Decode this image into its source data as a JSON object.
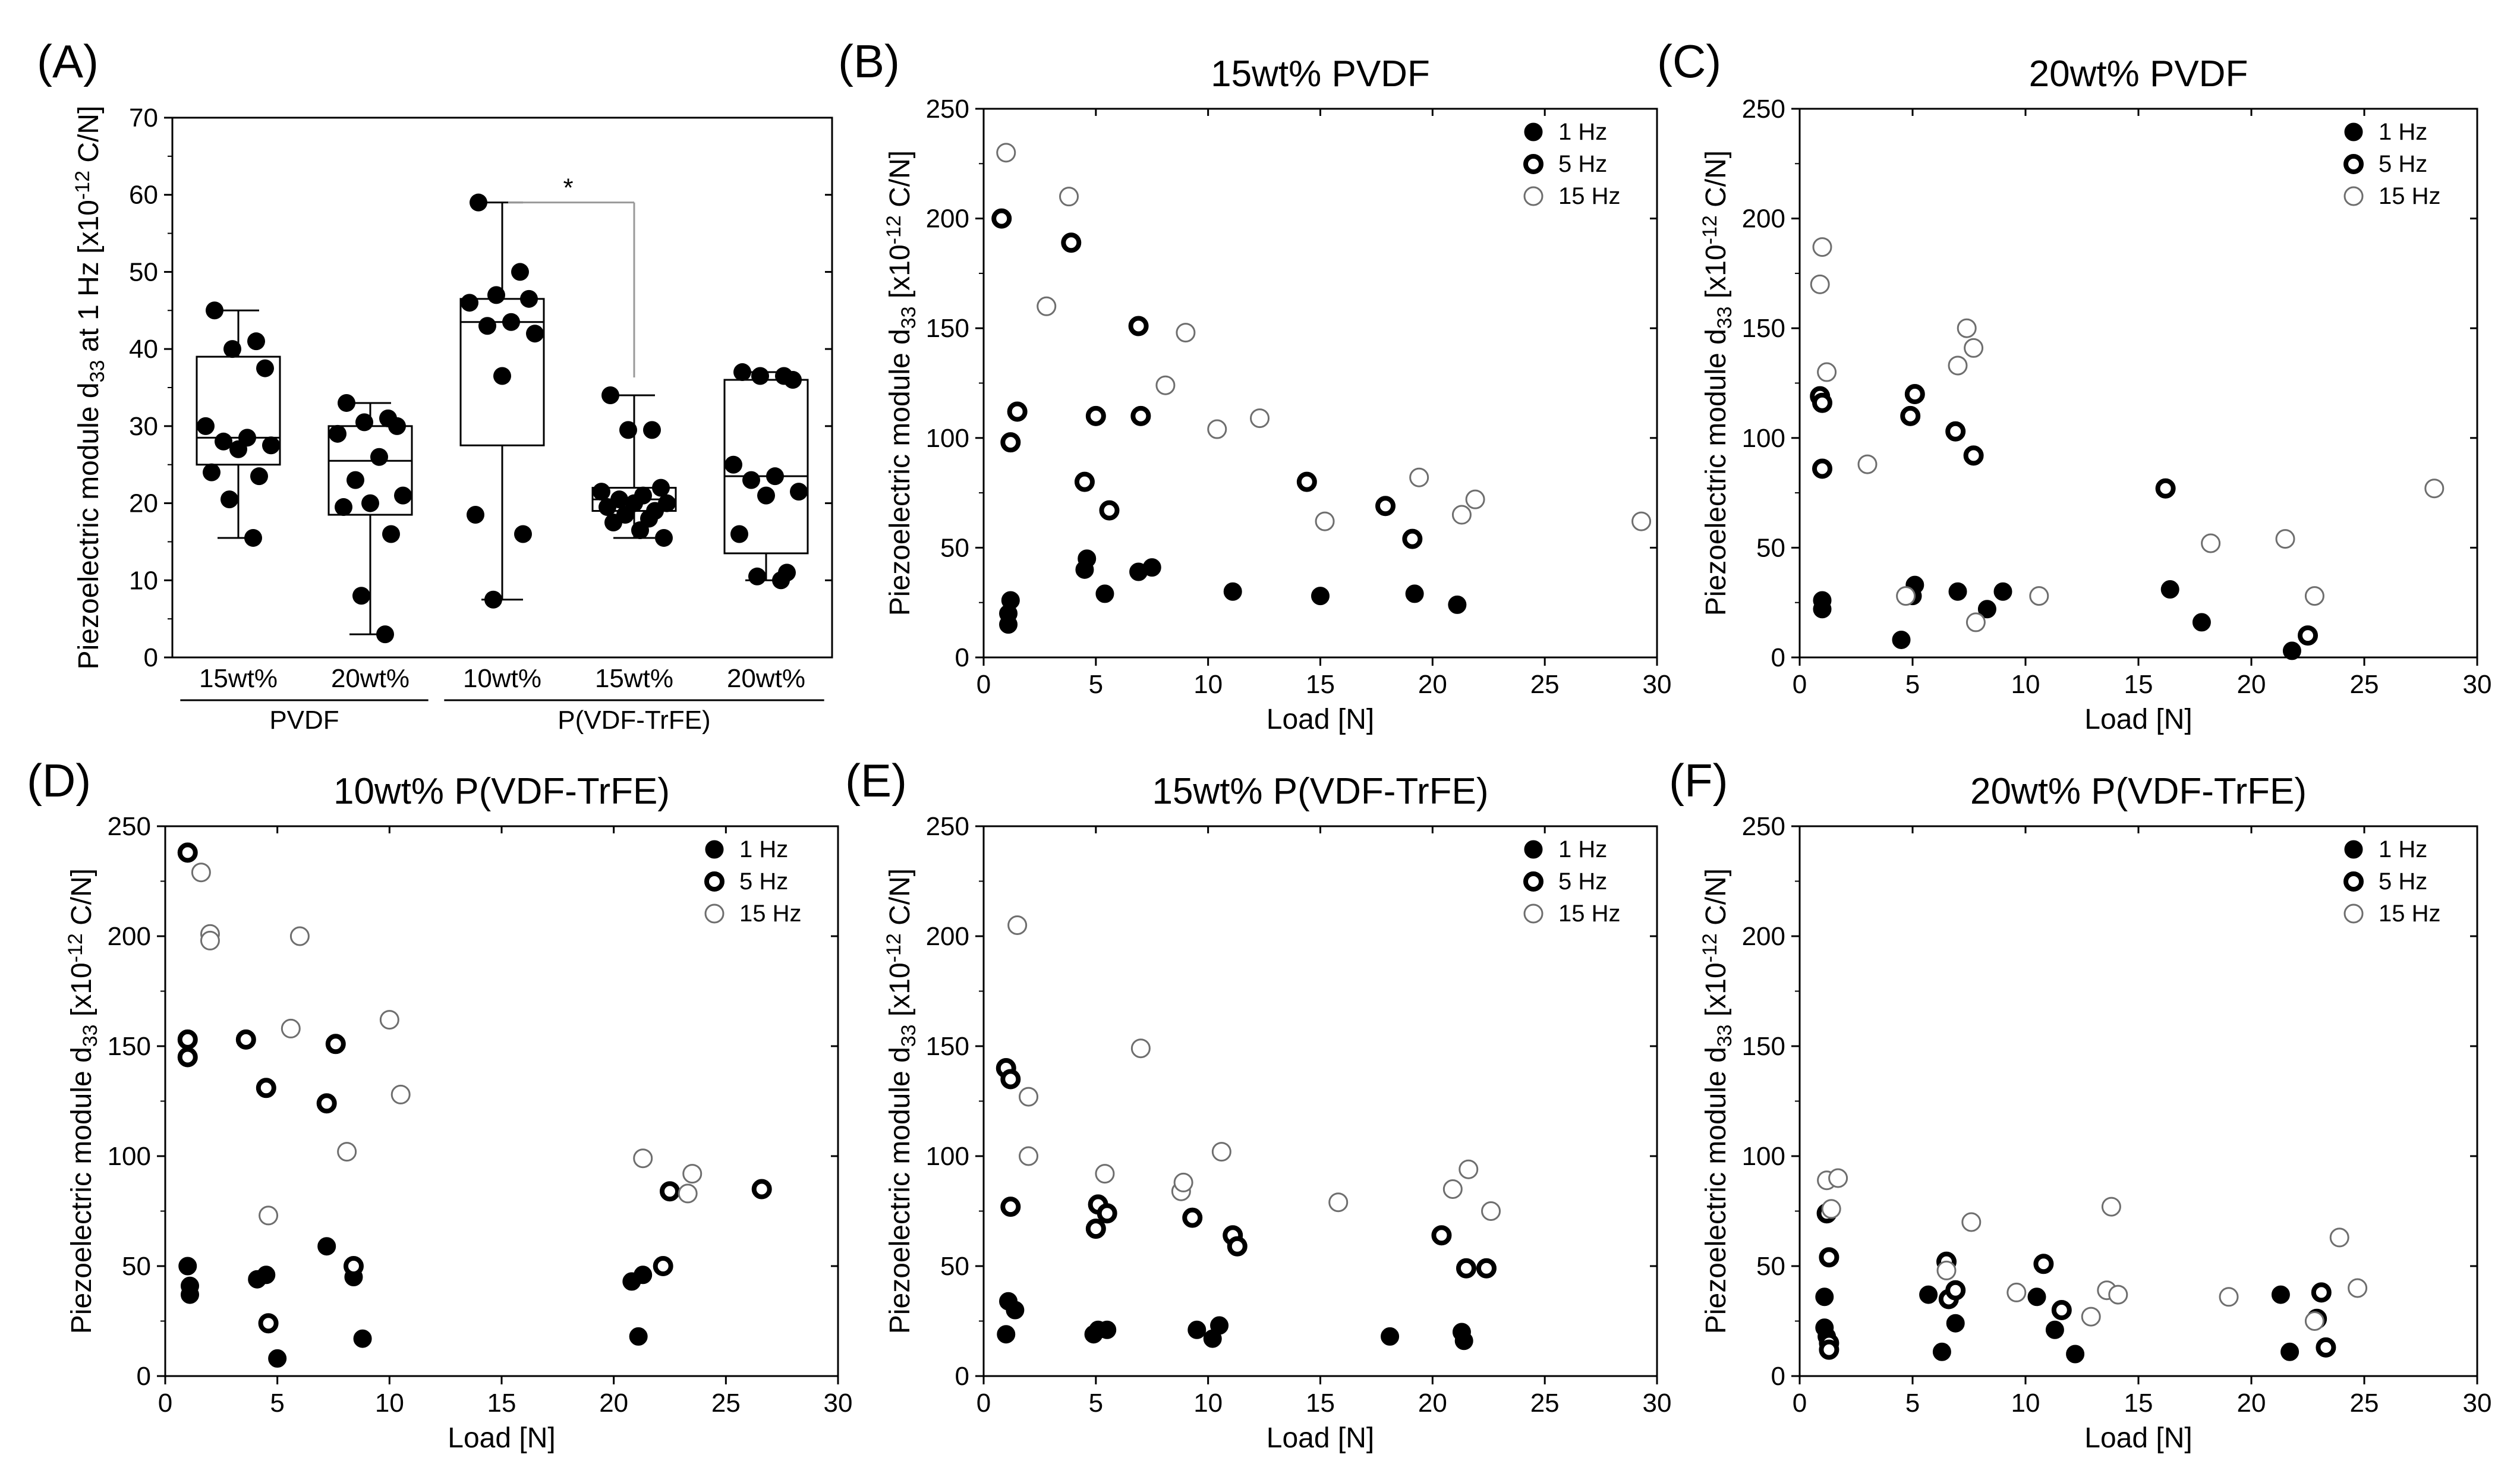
{
  "figure": {
    "panels": [
      "(A)",
      "(B)",
      "(C)",
      "(D)",
      "(E)",
      "(F)"
    ]
  },
  "chart_data": [
    {
      "panel": "(A)",
      "type": "box",
      "title": "",
      "ylabel_main": "Piezoelectric module d",
      "ylabel_sub": "33",
      "ylabel_rest": " at 1 Hz [x10",
      "ylabel_sup": "-12",
      "ylabel_end": " C/N]",
      "ylim": [
        0,
        70
      ],
      "yticks": [
        "0",
        "10",
        "20",
        "30",
        "40",
        "50",
        "60",
        "70"
      ],
      "categories": [
        "15wt%",
        "20wt%",
        "10wt%",
        "15wt%",
        "20wt%"
      ],
      "groups": [
        {
          "label": "PVDF",
          "from": 0,
          "to": 1
        },
        {
          "label": "P(VDF-TrFE)",
          "from": 2,
          "to": 4
        }
      ],
      "significance": "*",
      "boxes": [
        {
          "q1": 25,
          "median": 28.5,
          "q3": 39,
          "wmin": 15.5,
          "wmax": 45,
          "points": [
            45,
            41,
            40,
            37.5,
            30,
            28.5,
            28,
            27.5,
            27,
            24,
            23.5,
            20.5,
            15.5
          ]
        },
        {
          "q1": 18.5,
          "median": 25.5,
          "q3": 30,
          "wmin": 3,
          "wmax": 33,
          "points": [
            33,
            31,
            30.5,
            30,
            29,
            26,
            23,
            21,
            20,
            19.5,
            16,
            8,
            3
          ]
        },
        {
          "q1": 27.5,
          "median": 43.5,
          "q3": 46.5,
          "wmin": 7.5,
          "wmax": 59,
          "points": [
            59,
            50,
            47,
            46.5,
            46,
            43.5,
            43,
            42,
            36.5,
            18.5,
            16,
            7.5
          ]
        },
        {
          "q1": 19,
          "median": 20.5,
          "q3": 22,
          "wmin": 15.5,
          "wmax": 34,
          "points": [
            34,
            29.5,
            29.5,
            22,
            21.5,
            21,
            20.5,
            20,
            20,
            19.5,
            19,
            18.5,
            18,
            17.5,
            16.5,
            15.5
          ]
        },
        {
          "q1": 13.5,
          "median": 23.5,
          "q3": 36,
          "wmin": 10,
          "wmax": 37,
          "points": [
            37,
            36.5,
            36.5,
            36,
            25,
            23.5,
            23,
            21.5,
            21,
            16,
            11,
            10.5,
            10
          ]
        }
      ]
    },
    {
      "panel": "(B)",
      "type": "scatter",
      "title": "15wt% PVDF",
      "xlabel": "Load [N]",
      "xlim": [
        0,
        30
      ],
      "ylim": [
        0,
        250
      ],
      "legend": [
        "1 Hz",
        "5 Hz",
        "15 Hz"
      ],
      "series": [
        {
          "name": "1 Hz",
          "points": [
            [
              1.1,
              15
            ],
            [
              1.1,
              20
            ],
            [
              1.2,
              26
            ],
            [
              4.5,
              40
            ],
            [
              4.6,
              45
            ],
            [
              5.4,
              29
            ],
            [
              6.9,
              39
            ],
            [
              7.5,
              41
            ],
            [
              11.1,
              30
            ],
            [
              15,
              28
            ],
            [
              19.2,
              29
            ],
            [
              21.1,
              24
            ]
          ]
        },
        {
          "name": "5 Hz",
          "points": [
            [
              0.8,
              200
            ],
            [
              1.2,
              98
            ],
            [
              1.5,
              112
            ],
            [
              3.9,
              189
            ],
            [
              4.5,
              80
            ],
            [
              5.0,
              110
            ],
            [
              5.6,
              67
            ],
            [
              6.9,
              151
            ],
            [
              7.0,
              110
            ],
            [
              14.4,
              80
            ],
            [
              17.9,
              69
            ],
            [
              19.1,
              54
            ]
          ]
        },
        {
          "name": "15 Hz",
          "points": [
            [
              1.0,
              230
            ],
            [
              2.8,
              160
            ],
            [
              3.8,
              210
            ],
            [
              8.1,
              124
            ],
            [
              9.0,
              148
            ],
            [
              10.4,
              104
            ],
            [
              12.3,
              109
            ],
            [
              15.2,
              62
            ],
            [
              19.4,
              82
            ],
            [
              21.3,
              65
            ],
            [
              21.9,
              72
            ],
            [
              29.3,
              62
            ]
          ]
        }
      ]
    },
    {
      "panel": "(C)",
      "type": "scatter",
      "title": "20wt% PVDF",
      "xlabel": "Load [N]",
      "xlim": [
        0,
        30
      ],
      "ylim": [
        0,
        250
      ],
      "legend": [
        "1 Hz",
        "5 Hz",
        "15 Hz"
      ],
      "series": [
        {
          "name": "1 Hz",
          "points": [
            [
              1.0,
              22
            ],
            [
              1.0,
              26
            ],
            [
              4.5,
              8
            ],
            [
              5.0,
              28
            ],
            [
              5.1,
              33
            ],
            [
              7.0,
              30
            ],
            [
              8.3,
              22
            ],
            [
              9.0,
              30
            ],
            [
              16.4,
              31
            ],
            [
              17.8,
              16
            ],
            [
              21.8,
              3
            ]
          ]
        },
        {
          "name": "5 Hz",
          "points": [
            [
              0.9,
              119
            ],
            [
              1.0,
              116
            ],
            [
              1.0,
              86
            ],
            [
              4.9,
              110
            ],
            [
              5.1,
              120
            ],
            [
              6.9,
              103
            ],
            [
              7.7,
              92
            ],
            [
              16.2,
              77
            ],
            [
              22.5,
              10
            ]
          ]
        },
        {
          "name": "15 Hz",
          "points": [
            [
              0.9,
              170
            ],
            [
              1.0,
              187
            ],
            [
              1.2,
              130
            ],
            [
              3.0,
              88
            ],
            [
              4.7,
              28
            ],
            [
              7.0,
              133
            ],
            [
              7.4,
              150
            ],
            [
              7.7,
              141
            ],
            [
              7.8,
              16
            ],
            [
              10.6,
              28
            ],
            [
              18.2,
              52
            ],
            [
              21.5,
              54
            ],
            [
              22.8,
              28
            ],
            [
              28.1,
              77
            ]
          ]
        }
      ]
    },
    {
      "panel": "(D)",
      "type": "scatter",
      "title": "10wt% P(VDF-TrFE)",
      "xlabel": "Load [N]",
      "xlim": [
        0,
        30
      ],
      "ylim": [
        0,
        250
      ],
      "legend": [
        "1 Hz",
        "5 Hz",
        "15 Hz"
      ],
      "series": [
        {
          "name": "1 Hz",
          "points": [
            [
              1.0,
              50
            ],
            [
              1.1,
              41
            ],
            [
              1.1,
              37
            ],
            [
              4.1,
              44
            ],
            [
              4.5,
              46
            ],
            [
              5.0,
              8
            ],
            [
              7.2,
              59
            ],
            [
              8.4,
              45
            ],
            [
              8.8,
              17
            ],
            [
              20.8,
              43
            ],
            [
              21.1,
              18
            ],
            [
              21.3,
              46
            ]
          ]
        },
        {
          "name": "5 Hz",
          "points": [
            [
              1.0,
              238
            ],
            [
              1.0,
              153
            ],
            [
              1.0,
              145
            ],
            [
              3.6,
              153
            ],
            [
              4.5,
              131
            ],
            [
              4.6,
              24
            ],
            [
              7.2,
              124
            ],
            [
              7.6,
              151
            ],
            [
              8.4,
              50
            ],
            [
              22.2,
              50
            ],
            [
              22.5,
              84
            ],
            [
              26.6,
              85
            ]
          ]
        },
        {
          "name": "15 Hz",
          "points": [
            [
              1.6,
              229
            ],
            [
              2.0,
              201
            ],
            [
              2.0,
              198
            ],
            [
              4.6,
              73
            ],
            [
              5.6,
              158
            ],
            [
              6.0,
              200
            ],
            [
              8.1,
              102
            ],
            [
              10.0,
              162
            ],
            [
              10.5,
              128
            ],
            [
              21.3,
              99
            ],
            [
              23.3,
              83
            ],
            [
              23.5,
              92
            ]
          ]
        }
      ]
    },
    {
      "panel": "(E)",
      "type": "scatter",
      "title": "15wt% P(VDF-TrFE)",
      "xlabel": "Load [N]",
      "xlim": [
        0,
        30
      ],
      "ylim": [
        0,
        250
      ],
      "legend": [
        "1 Hz",
        "5 Hz",
        "15 Hz"
      ],
      "series": [
        {
          "name": "1 Hz",
          "points": [
            [
              1.0,
              19
            ],
            [
              1.1,
              34
            ],
            [
              1.4,
              30
            ],
            [
              4.9,
              19
            ],
            [
              5.1,
              21
            ],
            [
              5.5,
              21
            ],
            [
              9.5,
              21
            ],
            [
              10.2,
              17
            ],
            [
              10.5,
              23
            ],
            [
              18.1,
              18
            ],
            [
              21.3,
              20
            ],
            [
              21.4,
              16
            ]
          ]
        },
        {
          "name": "5 Hz",
          "points": [
            [
              1.0,
              140
            ],
            [
              1.2,
              135
            ],
            [
              1.2,
              77
            ],
            [
              5.0,
              67
            ],
            [
              5.1,
              78
            ],
            [
              5.5,
              74
            ],
            [
              9.3,
              72
            ],
            [
              11.1,
              64
            ],
            [
              11.3,
              59
            ],
            [
              20.4,
              64
            ],
            [
              21.5,
              49
            ],
            [
              22.4,
              49
            ]
          ]
        },
        {
          "name": "15 Hz",
          "points": [
            [
              1.5,
              205
            ],
            [
              2.0,
              127
            ],
            [
              2.0,
              100
            ],
            [
              5.4,
              92
            ],
            [
              7.0,
              149
            ],
            [
              8.8,
              84
            ],
            [
              8.9,
              88
            ],
            [
              10.6,
              102
            ],
            [
              15.8,
              79
            ],
            [
              20.9,
              85
            ],
            [
              21.6,
              94
            ],
            [
              22.6,
              75
            ]
          ]
        }
      ]
    },
    {
      "panel": "(F)",
      "type": "scatter",
      "title": "20wt% P(VDF-TrFE)",
      "xlabel": "Load [N]",
      "xlim": [
        0,
        30
      ],
      "ylim": [
        0,
        250
      ],
      "legend": [
        "1 Hz",
        "5 Hz",
        "15 Hz"
      ],
      "series": [
        {
          "name": "1 Hz",
          "points": [
            [
              1.1,
              36
            ],
            [
              1.1,
              22
            ],
            [
              1.2,
              18
            ],
            [
              5.7,
              37
            ],
            [
              6.3,
              11
            ],
            [
              6.9,
              24
            ],
            [
              10.5,
              36
            ],
            [
              11.3,
              21
            ],
            [
              12.2,
              10
            ],
            [
              21.3,
              37
            ],
            [
              21.7,
              11
            ]
          ]
        },
        {
          "name": "5 Hz",
          "points": [
            [
              1.2,
              74
            ],
            [
              1.3,
              54
            ],
            [
              1.3,
              15
            ],
            [
              1.3,
              12
            ],
            [
              6.5,
              52
            ],
            [
              6.6,
              35
            ],
            [
              6.9,
              39
            ],
            [
              10.8,
              51
            ],
            [
              11.6,
              30
            ],
            [
              22.9,
              26
            ],
            [
              23.1,
              38
            ],
            [
              23.3,
              13
            ]
          ]
        },
        {
          "name": "15 Hz",
          "points": [
            [
              1.2,
              89
            ],
            [
              1.4,
              76
            ],
            [
              1.7,
              90
            ],
            [
              6.5,
              48
            ],
            [
              7.6,
              70
            ],
            [
              9.6,
              38
            ],
            [
              12.9,
              27
            ],
            [
              13.6,
              39
            ],
            [
              13.8,
              77
            ],
            [
              14.1,
              37
            ],
            [
              19.0,
              36
            ],
            [
              22.8,
              25
            ],
            [
              23.9,
              63
            ],
            [
              24.7,
              40
            ]
          ]
        }
      ]
    }
  ]
}
